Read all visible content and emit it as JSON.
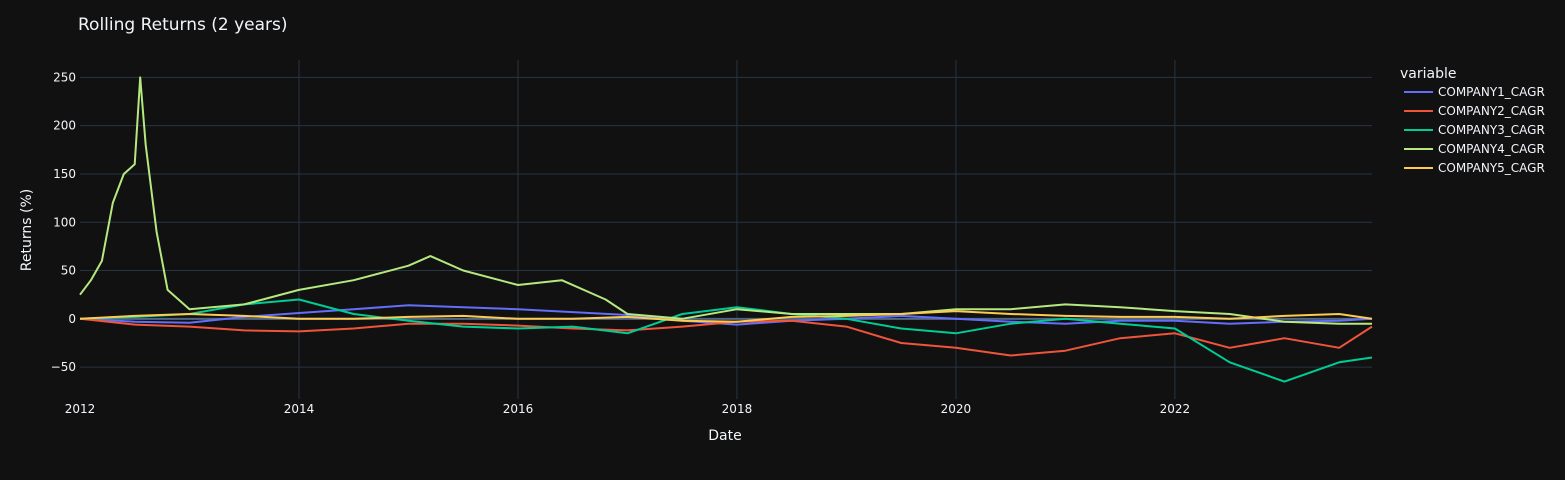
{
  "chart_data": {
    "type": "line",
    "title": "Rolling Returns (2 years)",
    "xlabel": "Date",
    "ylabel": "Returns (%)",
    "xlim": [
      2012.0,
      2023.8
    ],
    "ylim": [
      -83,
      268
    ],
    "x_ticks": [
      2012,
      2014,
      2016,
      2018,
      2020,
      2022
    ],
    "x_tick_labels": [
      "2012",
      "2014",
      "2016",
      "2018",
      "2020",
      "2022"
    ],
    "y_ticks": [
      -50,
      0,
      50,
      100,
      150,
      200,
      250
    ],
    "y_tick_labels": [
      "−50",
      "0",
      "50",
      "100",
      "150",
      "200",
      "250"
    ],
    "grid": true,
    "legend": {
      "title": "variable",
      "placement": "right"
    },
    "series": [
      {
        "name": "COMPANY1_CAGR",
        "color": "#636efa",
        "x": [
          2012.0,
          2012.5,
          2013.0,
          2013.5,
          2014.0,
          2014.5,
          2015.0,
          2015.5,
          2016.0,
          2016.5,
          2017.0,
          2017.5,
          2018.0,
          2018.5,
          2019.0,
          2019.5,
          2020.0,
          2020.5,
          2021.0,
          2021.5,
          2022.0,
          2022.5,
          2023.0,
          2023.5,
          2023.8
        ],
        "y": [
          0,
          -3,
          -4,
          2,
          6,
          10,
          14,
          12,
          10,
          7,
          4,
          -2,
          -6,
          -2,
          0,
          3,
          0,
          -3,
          -5,
          -2,
          -2,
          -5,
          -3,
          -2,
          0
        ]
      },
      {
        "name": "COMPANY2_CAGR",
        "color": "#ef553b",
        "x": [
          2012.0,
          2012.5,
          2013.0,
          2013.5,
          2014.0,
          2014.5,
          2015.0,
          2015.5,
          2016.0,
          2016.5,
          2017.0,
          2017.5,
          2018.0,
          2018.5,
          2019.0,
          2019.5,
          2020.0,
          2020.5,
          2021.0,
          2021.5,
          2022.0,
          2022.5,
          2023.0,
          2023.5,
          2023.8
        ],
        "y": [
          0,
          -6,
          -8,
          -12,
          -13,
          -10,
          -5,
          -5,
          -7,
          -10,
          -12,
          -8,
          -3,
          -2,
          -8,
          -25,
          -30,
          -38,
          -33,
          -20,
          -15,
          -30,
          -20,
          -30,
          -8
        ]
      },
      {
        "name": "COMPANY3_CAGR",
        "color": "#00cc96",
        "x": [
          2012.0,
          2012.5,
          2013.0,
          2013.5,
          2014.0,
          2014.5,
          2015.0,
          2015.5,
          2016.0,
          2016.5,
          2017.0,
          2017.5,
          2018.0,
          2018.5,
          2019.0,
          2019.5,
          2020.0,
          2020.5,
          2021.0,
          2021.5,
          2022.0,
          2022.5,
          2023.0,
          2023.5,
          2023.8
        ],
        "y": [
          0,
          2,
          5,
          15,
          20,
          5,
          -2,
          -8,
          -10,
          -8,
          -15,
          5,
          12,
          5,
          0,
          -10,
          -15,
          -5,
          0,
          -5,
          -10,
          -45,
          -65,
          -45,
          -40
        ]
      },
      {
        "name": "COMPANY4_CAGR",
        "color": "#b6e880",
        "x": [
          2012.0,
          2012.1,
          2012.2,
          2012.3,
          2012.4,
          2012.5,
          2012.55,
          2012.6,
          2012.7,
          2012.8,
          2013.0,
          2013.5,
          2014.0,
          2014.5,
          2015.0,
          2015.2,
          2015.5,
          2016.0,
          2016.4,
          2016.8,
          2017.0,
          2017.5,
          2018.0,
          2018.5,
          2019.0,
          2019.5,
          2020.0,
          2020.5,
          2021.0,
          2021.5,
          2022.0,
          2022.5,
          2023.0,
          2023.5,
          2023.8
        ],
        "y": [
          25,
          40,
          60,
          120,
          150,
          160,
          250,
          180,
          90,
          30,
          10,
          15,
          30,
          40,
          55,
          65,
          50,
          35,
          40,
          20,
          5,
          0,
          10,
          5,
          5,
          5,
          10,
          10,
          15,
          12,
          8,
          5,
          -3,
          -5,
          -5
        ]
      },
      {
        "name": "COMPANY5_CAGR",
        "color": "#fecb52",
        "x": [
          2012.0,
          2012.5,
          2013.0,
          2013.5,
          2014.0,
          2014.5,
          2015.0,
          2015.5,
          2016.0,
          2016.5,
          2017.0,
          2017.5,
          2018.0,
          2018.5,
          2019.0,
          2019.5,
          2020.0,
          2020.5,
          2021.0,
          2021.5,
          2022.0,
          2022.5,
          2023.0,
          2023.5,
          2023.8
        ],
        "y": [
          0,
          3,
          5,
          3,
          0,
          0,
          2,
          3,
          0,
          0,
          2,
          -2,
          -3,
          2,
          3,
          5,
          8,
          5,
          3,
          2,
          2,
          0,
          3,
          5,
          0
        ]
      }
    ]
  }
}
